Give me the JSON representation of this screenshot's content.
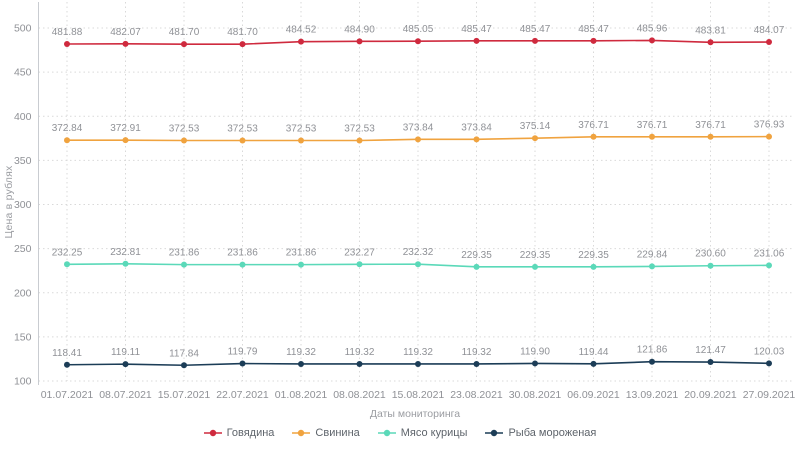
{
  "chart_data": {
    "type": "line",
    "title": "",
    "xlabel": "Даты мониторинга",
    "ylabel": "Цена в рублях",
    "ylim": [
      100,
      500
    ],
    "yticks": [
      100,
      150,
      200,
      250,
      300,
      350,
      400,
      450,
      500
    ],
    "grid": "dotted",
    "legend_position": "bottom",
    "point_labels": true,
    "categories": [
      "01.07.2021",
      "08.07.2021",
      "15.07.2021",
      "22.07.2021",
      "01.08.2021",
      "08.08.2021",
      "15.08.2021",
      "23.08.2021",
      "30.08.2021",
      "06.09.2021",
      "13.09.2021",
      "20.09.2021",
      "27.09.2021"
    ],
    "series": [
      {
        "name": "Говядина",
        "color": "#cf2a3e",
        "values": [
          481.88,
          482.07,
          481.7,
          481.7,
          484.52,
          484.9,
          485.05,
          485.47,
          485.47,
          485.47,
          485.96,
          483.81,
          484.07
        ]
      },
      {
        "name": "Свинина",
        "color": "#f0a33f",
        "values": [
          372.84,
          372.91,
          372.53,
          372.53,
          372.53,
          372.53,
          373.84,
          373.84,
          375.14,
          376.71,
          376.71,
          376.71,
          376.93
        ]
      },
      {
        "name": "Мясо курицы",
        "color": "#5bd9b9",
        "values": [
          232.25,
          232.81,
          231.86,
          231.86,
          231.86,
          232.27,
          232.32,
          229.35,
          229.35,
          229.35,
          229.84,
          230.6,
          231.06
        ]
      },
      {
        "name": "Рыба мороженая",
        "color": "#1c3d57",
        "values": [
          118.41,
          119.11,
          117.84,
          119.79,
          119.32,
          119.32,
          119.32,
          119.32,
          119.9,
          119.44,
          121.86,
          121.47,
          120.03
        ]
      }
    ]
  },
  "colors": {
    "background": "#ffffff",
    "grid": "#d9d9d9",
    "axis": "#c9ccd1",
    "tick_text": "#8f9196",
    "point_label_text": "#8f9196",
    "legend_text": "#5e646b"
  }
}
